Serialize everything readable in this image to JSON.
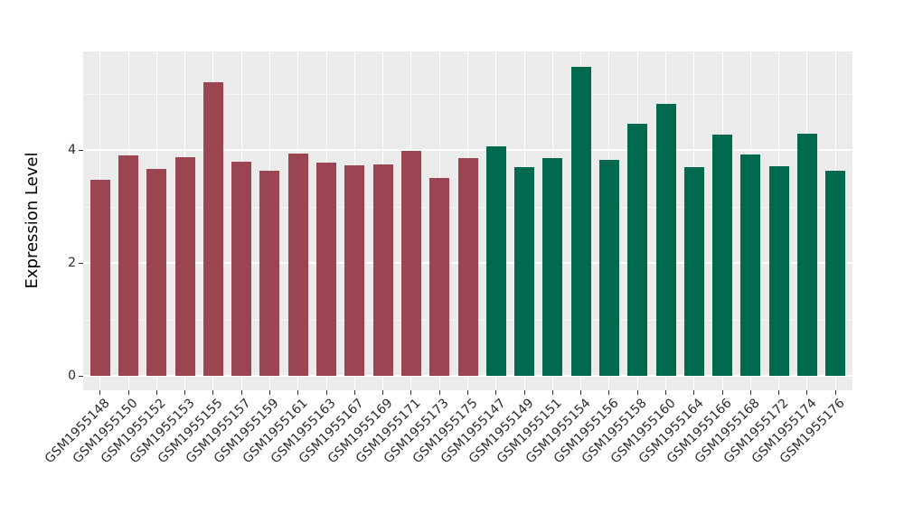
{
  "theme": {
    "figure_background": "#FFFFFF",
    "panel_background": "#EBEBEB",
    "grid_major_color": "#FFFFFF",
    "grid_minor_color": "rgba(255,255,255,0.6)",
    "axis_text_color": "#2B2B2B",
    "axis_title_color": "#000000",
    "tick_color": "#333333"
  },
  "chart_data": {
    "type": "bar",
    "title": "",
    "xlabel": "",
    "ylabel": "Expression Level",
    "ylim": [
      0,
      5.75
    ],
    "yticks": [
      0,
      2,
      4
    ],
    "yticks_minor": [
      1,
      3,
      5
    ],
    "grid": "horizontal major+minor, vertical major per category",
    "legend_position": "none",
    "bar_width_fraction": 0.71,
    "groups": [
      {
        "name": "group-red",
        "color": "#9B4452"
      },
      {
        "name": "group-green",
        "color": "#00694E"
      }
    ],
    "bars": [
      {
        "label": "GSM1955148",
        "value": 3.47,
        "group": 0
      },
      {
        "label": "GSM1955150",
        "value": 3.9,
        "group": 0
      },
      {
        "label": "GSM1955152",
        "value": 3.66,
        "group": 0
      },
      {
        "label": "GSM1955153",
        "value": 3.88,
        "group": 0
      },
      {
        "label": "GSM1955155",
        "value": 5.2,
        "group": 0
      },
      {
        "label": "GSM1955157",
        "value": 3.8,
        "group": 0
      },
      {
        "label": "GSM1955159",
        "value": 3.64,
        "group": 0
      },
      {
        "label": "GSM1955161",
        "value": 3.93,
        "group": 0
      },
      {
        "label": "GSM1955163",
        "value": 3.77,
        "group": 0
      },
      {
        "label": "GSM1955167",
        "value": 3.73,
        "group": 0
      },
      {
        "label": "GSM1955169",
        "value": 3.74,
        "group": 0
      },
      {
        "label": "GSM1955171",
        "value": 3.99,
        "group": 0
      },
      {
        "label": "GSM1955173",
        "value": 3.5,
        "group": 0
      },
      {
        "label": "GSM1955175",
        "value": 3.85,
        "group": 0
      },
      {
        "label": "GSM1955147",
        "value": 4.07,
        "group": 1
      },
      {
        "label": "GSM1955149",
        "value": 3.7,
        "group": 1
      },
      {
        "label": "GSM1955151",
        "value": 3.85,
        "group": 1
      },
      {
        "label": "GSM1955154",
        "value": 5.48,
        "group": 1
      },
      {
        "label": "GSM1955156",
        "value": 3.82,
        "group": 1
      },
      {
        "label": "GSM1955158",
        "value": 4.47,
        "group": 1
      },
      {
        "label": "GSM1955160",
        "value": 4.82,
        "group": 1
      },
      {
        "label": "GSM1955164",
        "value": 3.69,
        "group": 1
      },
      {
        "label": "GSM1955166",
        "value": 4.27,
        "group": 1
      },
      {
        "label": "GSM1955168",
        "value": 3.92,
        "group": 1
      },
      {
        "label": "GSM1955172",
        "value": 3.71,
        "group": 1
      },
      {
        "label": "GSM1955174",
        "value": 4.29,
        "group": 1
      },
      {
        "label": "GSM1955176",
        "value": 3.63,
        "group": 1
      }
    ]
  }
}
